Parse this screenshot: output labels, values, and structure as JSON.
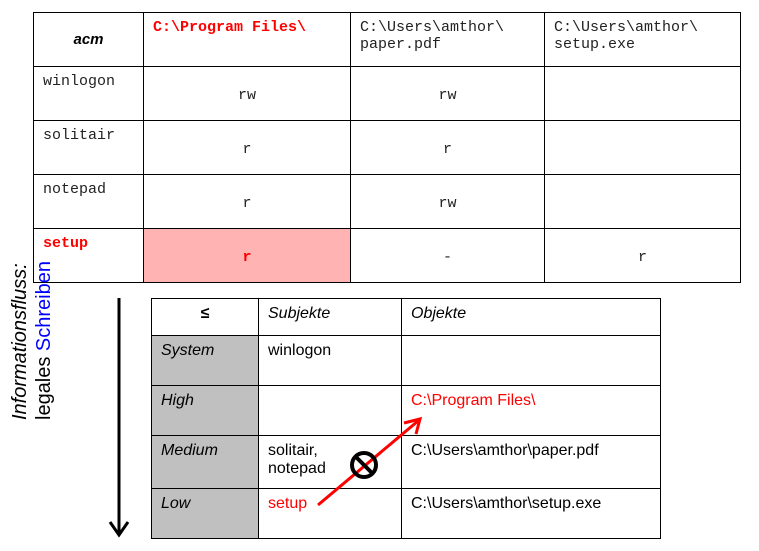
{
  "acm_table": {
    "corner": "acm",
    "columns": [
      "C:\\Program Files\\",
      "C:\\Users\\amthor\\ paper.pdf",
      "C:\\Users\\amthor\\ setup.exe"
    ],
    "rows": [
      {
        "subject": "winlogon",
        "cells": [
          "rw",
          "rw",
          ""
        ]
      },
      {
        "subject": "solitair",
        "cells": [
          "r",
          "r",
          ""
        ]
      },
      {
        "subject": "notepad",
        "cells": [
          "r",
          "rw",
          ""
        ]
      },
      {
        "subject": "setup",
        "cells": [
          "r",
          "-",
          "r"
        ]
      }
    ],
    "highlight_color": "#ffb3b3",
    "highlight_text_color": "#ff0000"
  },
  "level_table": {
    "corner": "≤",
    "headers": [
      "Subjekte",
      "Objekte"
    ],
    "rows": [
      {
        "level": "System",
        "subjects": "winlogon",
        "objects": ""
      },
      {
        "level": "High",
        "subjects": "",
        "objects": "C:\\Program Files\\"
      },
      {
        "level": "Medium",
        "subjects": "solitair, notepad",
        "objects": "C:\\Users\\amthor\\paper.pdf"
      },
      {
        "level": "Low",
        "subjects": "setup",
        "objects": "C:\\Users\\amthor\\setup.exe"
      }
    ]
  },
  "side_label": {
    "line1": "Informationsfluss:",
    "line2_a": "legales ",
    "line2_b": "Schreiben",
    "accent": "#0000ff"
  },
  "icons": [
    "down-arrow-icon",
    "red-arrow-icon",
    "prohibited-icon"
  ]
}
